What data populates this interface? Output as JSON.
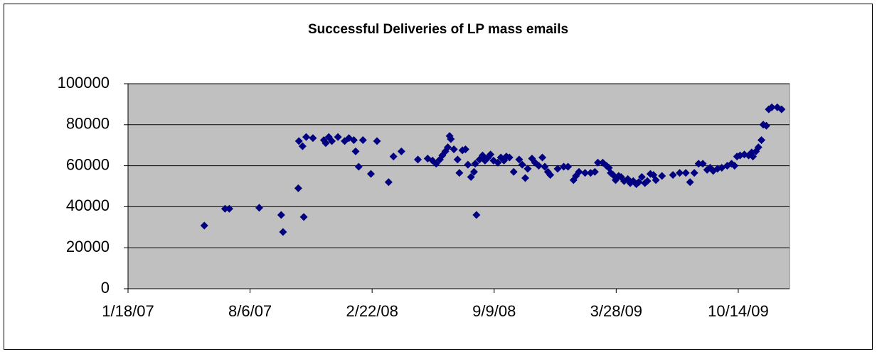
{
  "chart_data": {
    "type": "scatter",
    "title": "Successful Deliveries of LP mass emails",
    "color": "#000080",
    "grid": true,
    "xlim": [
      "1/18/07",
      "1/6/10"
    ],
    "xticks": [
      "1/18/07",
      "8/6/07",
      "2/22/08",
      "9/9/08",
      "3/28/09",
      "10/14/09"
    ],
    "ylim": [
      0,
      100000
    ],
    "yticks": [
      0,
      20000,
      40000,
      60000,
      80000,
      100000
    ],
    "x": [
      "5/23/07",
      "6/26/07",
      "7/3/07",
      "8/21/07",
      "9/26/07",
      "9/29/07",
      "10/24/07",
      "10/25/07",
      "10/31/07",
      "11/2/07",
      "11/6/07",
      "11/17/07",
      "12/5/07",
      "12/8/07",
      "12/13/07",
      "12/18/07",
      "12/28/07",
      "1/8/08",
      "1/15/08",
      "1/23/08",
      "1/26/08",
      "1/31/08",
      "2/7/08",
      "2/20/08",
      "3/1/08",
      "3/20/08",
      "3/28/08",
      "4/10/08",
      "5/7/08",
      "5/23/08",
      "5/31/08",
      "6/6/08",
      "6/12/08",
      "6/16/08",
      "6/21/08",
      "6/25/08",
      "6/28/08",
      "6/30/08",
      "7/5/08",
      "7/11/08",
      "7/14/08",
      "7/19/08",
      "7/24/08",
      "7/28/08",
      "8/2/08",
      "8/7/08",
      "8/9/08",
      "8/11/08",
      "8/16/08",
      "8/21/08",
      "8/25/08",
      "8/30/08",
      "9/3/08",
      "9/8/08",
      "9/15/08",
      "9/20/08",
      "9/25/08",
      "9/29/08",
      "10/4/08",
      "10/11/08",
      "10/20/08",
      "10/25/08",
      "10/30/08",
      "11/3/08",
      "11/10/08",
      "11/15/08",
      "11/21/08",
      "11/27/08",
      "12/1/08",
      "12/6/08",
      "12/10/08",
      "12/22/08",
      "1/1/09",
      "1/8/09",
      "1/17/09",
      "1/21/09",
      "1/26/09",
      "2/5/09",
      "2/14/09",
      "2/21/09",
      "2/26/09",
      "3/6/09",
      "3/12/09",
      "3/16/09",
      "3/19/09",
      "3/23/09",
      "3/27/09",
      "4/1/09",
      "4/5/09",
      "4/10/09",
      "4/16/09",
      "4/20/09",
      "4/25/09",
      "4/30/09",
      "5/4/09",
      "5/9/09",
      "5/14/09",
      "5/18/09",
      "5/23/09",
      "5/28/09",
      "6/1/09",
      "6/11/09",
      "6/29/09",
      "7/10/09",
      "7/20/09",
      "7/27/09",
      "8/3/09",
      "8/10/09",
      "8/17/09",
      "8/24/09",
      "8/29/09",
      "9/3/09",
      "9/10/09",
      "9/17/09",
      "9/26/09",
      "10/3/09",
      "10/8/09",
      "10/12/09",
      "10/17/09",
      "10/24/09",
      "10/31/09",
      "11/5/09",
      "11/7/09",
      "11/12/09",
      "11/16/09",
      "11/21/09",
      "11/24/09",
      "11/29/09",
      "12/3/09",
      "12/8/09",
      "12/17/09",
      "12/24/09"
    ],
    "values": [
      30800,
      39000,
      39000,
      39500,
      36000,
      27700,
      49000,
      72000,
      69500,
      35000,
      74000,
      73500,
      72500,
      71000,
      74000,
      72000,
      74000,
      72000,
      73500,
      72500,
      67000,
      59500,
      72500,
      56000,
      72000,
      52000,
      64500,
      67000,
      63000,
      63500,
      62500,
      61000,
      63000,
      65000,
      67000,
      69000,
      74500,
      73000,
      68000,
      63000,
      56500,
      67500,
      68000,
      60500,
      54500,
      57000,
      61000,
      36000,
      63000,
      65000,
      62500,
      64000,
      65500,
      62500,
      61500,
      64000,
      62500,
      64500,
      64000,
      57000,
      63000,
      60500,
      54000,
      58500,
      63500,
      61500,
      60000,
      64000,
      59500,
      57000,
      55500,
      58500,
      59500,
      59500,
      53000,
      55000,
      57000,
      56500,
      56500,
      57000,
      61500,
      61500,
      60000,
      59000,
      56500,
      55500,
      53000,
      55000,
      54500,
      52500,
      53500,
      51500,
      52500,
      51000,
      52000,
      54500,
      51500,
      52500,
      56000,
      55500,
      53000,
      55000,
      55500,
      56500,
      56500,
      52000,
      56500,
      61000,
      61000,
      58000,
      59000,
      57500,
      58500,
      59000,
      60000,
      61000,
      60000,
      64500,
      65000,
      65500,
      65000,
      66500,
      64500,
      67000,
      69000,
      72500,
      80000,
      79500,
      87500,
      88500,
      88500,
      87500
    ]
  }
}
